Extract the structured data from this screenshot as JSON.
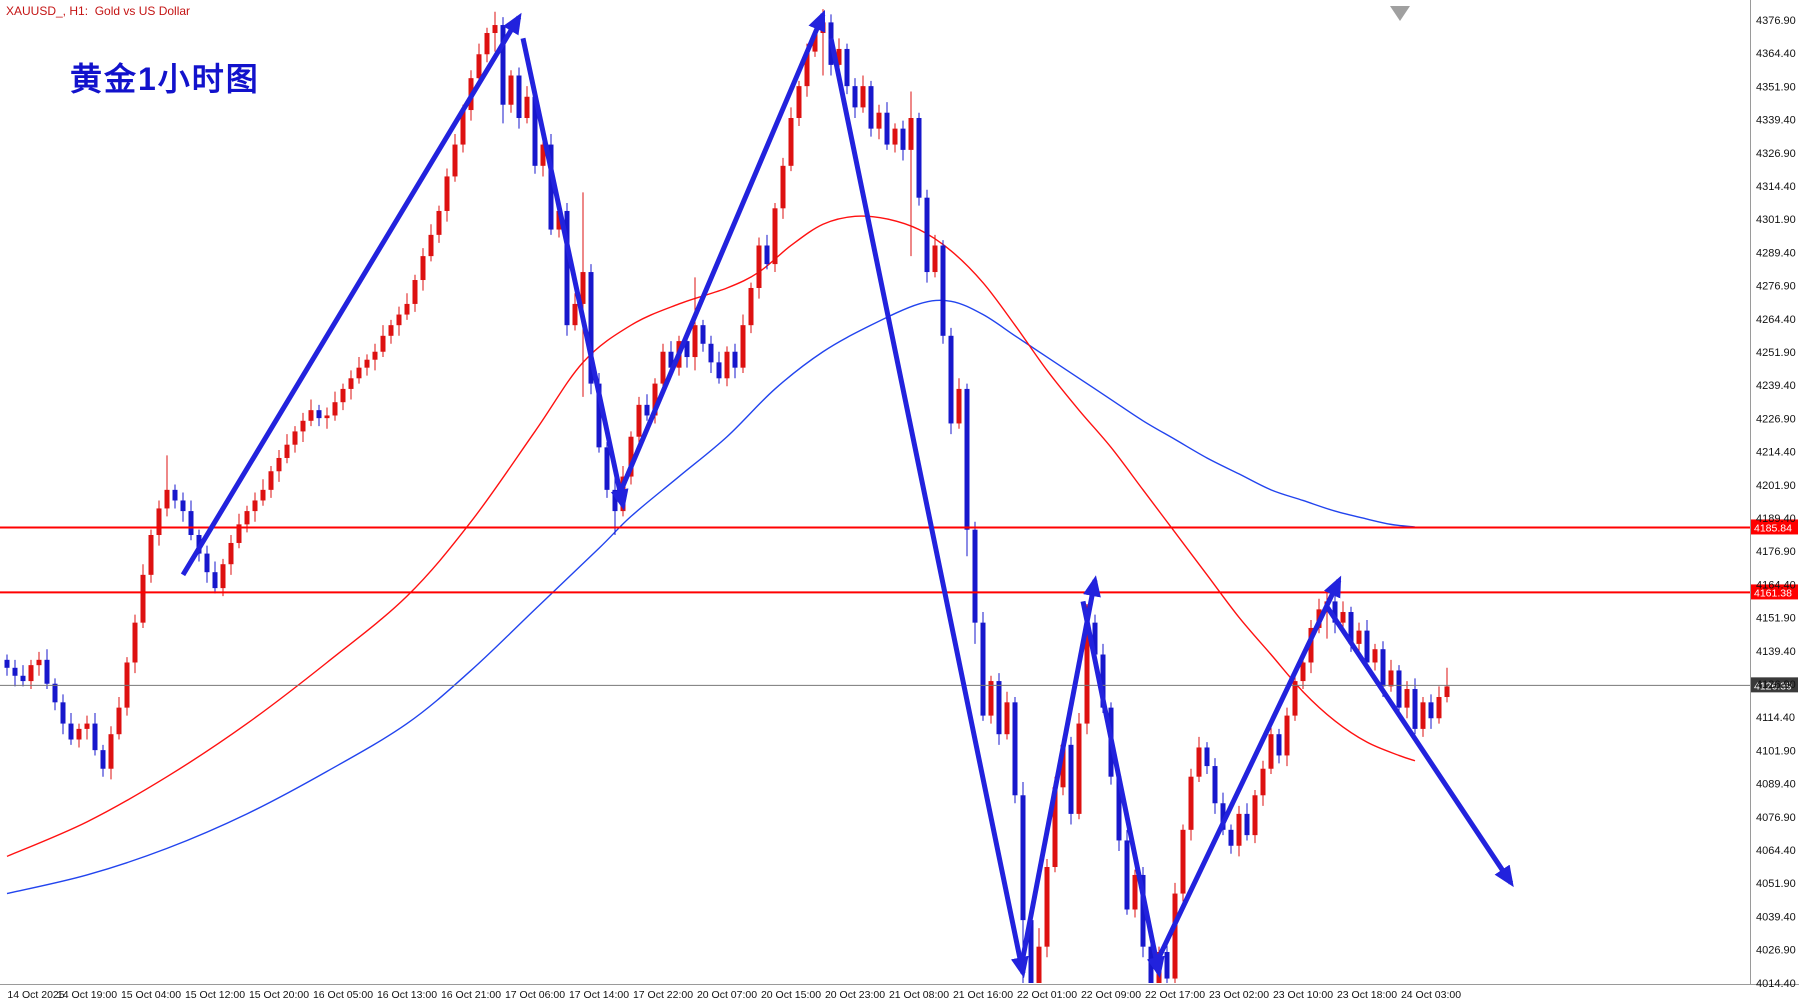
{
  "header": {
    "symbol_title": "XAUUSD_, H1:  Gold vs US Dollar",
    "annotation_title": "黄金1小时图"
  },
  "colors": {
    "background": "#ffffff",
    "bull_candle": "#dd1111",
    "bear_candle": "#1717cc",
    "ma_fast": "#ff1111",
    "ma_slow": "#2244ee",
    "trend_arrow": "#2222dd",
    "hline": "#ff0000",
    "bid_line": "#777777",
    "hline_badge_bg": "#ff0000",
    "bid_badge_bg": "#3a3a3a",
    "badge_text": "#ffffff",
    "axis_text": "#111111",
    "axis_border": "#9a9a9a",
    "shift_marker": "#a0a0a0"
  },
  "chart_data": {
    "type": "candlestick",
    "symbol": "XAUUSD",
    "timeframe": "H1",
    "title": "XAUUSD_, H1:  Gold vs US Dollar",
    "annotation": "黄金1小时图",
    "grid": false,
    "y_axis": {
      "max": 4376.9,
      "min": 4014.4,
      "step": 12.5,
      "labels": [
        "4376.90",
        "4364.40",
        "4351.90",
        "4339.40",
        "4326.90",
        "4314.40",
        "4301.90",
        "4289.40",
        "4276.90",
        "4264.40",
        "4251.90",
        "4239.40",
        "4226.90",
        "4214.40",
        "4201.90",
        "4189.40",
        "4176.90",
        "4164.40",
        "4151.90",
        "4139.40",
        "4126.90",
        "4114.40",
        "4101.90",
        "4089.40",
        "4076.90",
        "4064.40",
        "4051.90",
        "4039.40",
        "4026.90",
        "4014.40"
      ]
    },
    "x_axis": {
      "labels": [
        "14 Oct 2025",
        "14 Oct 19:00",
        "15 Oct 04:00",
        "15 Oct 12:00",
        "15 Oct 20:00",
        "16 Oct 05:00",
        "16 Oct 13:00",
        "16 Oct 21:00",
        "17 Oct 06:00",
        "17 Oct 14:00",
        "17 Oct 22:00",
        "20 Oct 07:00",
        "20 Oct 15:00",
        "20 Oct 23:00",
        "21 Oct 08:00",
        "21 Oct 16:00",
        "22 Oct 01:00",
        "22 Oct 09:00",
        "22 Oct 17:00",
        "23 Oct 02:00",
        "23 Oct 10:00",
        "23 Oct 18:00",
        "24 Oct 03:00"
      ],
      "candles_per_label": 8,
      "first_label_candle_index": 2
    },
    "price_lines": [
      {
        "price": 4185.84,
        "label": "4185.84",
        "role": "horizontal-resistance-line",
        "width": 2
      },
      {
        "price": 4161.38,
        "label": "4161.38",
        "role": "horizontal-support-line",
        "width": 2
      },
      {
        "price": 4126.39,
        "label": "4126.39",
        "role": "bid-price-line",
        "width": 1
      }
    ],
    "first_open": 4136,
    "closes": [
      4133,
      4130,
      4128,
      4134,
      4136,
      4127,
      4120,
      4112,
      4106,
      4110,
      4112,
      4102,
      4095,
      4108,
      4118,
      4135,
      4150,
      4168,
      4183,
      4193,
      4200,
      4196,
      4192,
      4183,
      4176,
      4169,
      4163,
      4172,
      4180,
      4187,
      4192,
      4196,
      4200,
      4207,
      4212,
      4217,
      4222,
      4226,
      4230,
      4227,
      4228,
      4233,
      4238,
      4242,
      4246,
      4249,
      4252,
      4258,
      4262,
      4266,
      4270,
      4279,
      4288,
      4296,
      4305,
      4318,
      4330,
      4343,
      4355,
      4364,
      4372,
      4375,
      4345,
      4356,
      4340,
      4348,
      4322,
      4330,
      4298,
      4305,
      4262,
      4270,
      4282,
      4240,
      4216,
      4200,
      4192,
      4205,
      4220,
      4232,
      4228,
      4240,
      4252,
      4246,
      4256,
      4250,
      4262,
      4255,
      4248,
      4242,
      4252,
      4246,
      4262,
      4276,
      4292,
      4285,
      4306,
      4322,
      4340,
      4352,
      4365,
      4372,
      4376,
      4360,
      4366,
      4352,
      4344,
      4352,
      4336,
      4342,
      4330,
      4336,
      4328,
      4340,
      4310,
      4282,
      4292,
      4258,
      4225,
      4238,
      4185,
      4150,
      4115,
      4128,
      4108,
      4120,
      4085,
      4038,
      4012,
      4028,
      4058,
      4088,
      4104,
      4078,
      4112,
      4150,
      4138,
      4118,
      4092,
      4068,
      4042,
      4055,
      4028,
      4012,
      4026,
      4016,
      4048,
      4072,
      4092,
      4103,
      4096,
      4082,
      4072,
      4066,
      4078,
      4070,
      4085,
      4095,
      4108,
      4100,
      4115,
      4128,
      4135,
      4148,
      4155,
      4158,
      4150,
      4154,
      4142,
      4147,
      4135,
      4140,
      4126,
      4132,
      4118,
      4125,
      4110,
      4120,
      4114,
      4122,
      4126
    ],
    "extremes": {
      "20": [
        4213,
        4190
      ],
      "61": [
        4380,
        4365
      ],
      "62": [
        4378,
        4338
      ],
      "72": [
        4312,
        4235
      ],
      "76": [
        4208,
        4183
      ],
      "86": [
        4280,
        4245
      ],
      "102": [
        4381,
        4356
      ],
      "113": [
        4350,
        4288
      ],
      "120": [
        4240,
        4175
      ],
      "121": [
        4188,
        4142
      ],
      "127": [
        4090,
        4012
      ],
      "128": [
        4042,
        4006
      ],
      "129": [
        4035,
        4005
      ],
      "135": [
        4157,
        4108
      ],
      "143": [
        4032,
        4006
      ],
      "145": [
        4030,
        4004
      ],
      "165": [
        4162,
        4144
      ],
      "180": [
        4133,
        4120
      ]
    },
    "ma_fast_points": [
      [
        0,
        4062
      ],
      [
        10,
        4075
      ],
      [
        20,
        4092
      ],
      [
        30,
        4112
      ],
      [
        40,
        4135
      ],
      [
        50,
        4160
      ],
      [
        58,
        4188
      ],
      [
        66,
        4222
      ],
      [
        72,
        4248
      ],
      [
        78,
        4262
      ],
      [
        84,
        4270
      ],
      [
        90,
        4276
      ],
      [
        94,
        4282
      ],
      [
        98,
        4292
      ],
      [
        102,
        4300
      ],
      [
        106,
        4303
      ],
      [
        110,
        4302
      ],
      [
        114,
        4298
      ],
      [
        118,
        4290
      ],
      [
        122,
        4278
      ],
      [
        126,
        4262
      ],
      [
        130,
        4245
      ],
      [
        134,
        4230
      ],
      [
        138,
        4216
      ],
      [
        142,
        4200
      ],
      [
        146,
        4184
      ],
      [
        150,
        4168
      ],
      [
        154,
        4152
      ],
      [
        158,
        4138
      ],
      [
        162,
        4124
      ],
      [
        166,
        4113
      ],
      [
        170,
        4105
      ],
      [
        174,
        4100
      ],
      [
        176,
        4098
      ]
    ],
    "ma_slow_points": [
      [
        0,
        4048
      ],
      [
        10,
        4055
      ],
      [
        20,
        4065
      ],
      [
        30,
        4078
      ],
      [
        40,
        4094
      ],
      [
        50,
        4112
      ],
      [
        58,
        4132
      ],
      [
        66,
        4155
      ],
      [
        74,
        4178
      ],
      [
        78,
        4190
      ],
      [
        84,
        4205
      ],
      [
        90,
        4220
      ],
      [
        96,
        4238
      ],
      [
        102,
        4252
      ],
      [
        108,
        4262
      ],
      [
        114,
        4270
      ],
      [
        118,
        4271
      ],
      [
        122,
        4266
      ],
      [
        126,
        4258
      ],
      [
        130,
        4250
      ],
      [
        134,
        4242
      ],
      [
        138,
        4234
      ],
      [
        142,
        4226
      ],
      [
        146,
        4219
      ],
      [
        150,
        4212
      ],
      [
        154,
        4206
      ],
      [
        158,
        4200
      ],
      [
        162,
        4196
      ],
      [
        166,
        4192
      ],
      [
        170,
        4189
      ],
      [
        173,
        4187
      ],
      [
        176,
        4186
      ]
    ],
    "trend_arrows": [
      {
        "from": [
          22,
          4168
        ],
        "to": [
          64,
          4378
        ]
      },
      {
        "from": [
          64.5,
          4370
        ],
        "to": [
          77,
          4194
        ]
      },
      {
        "from": [
          76.5,
          4198
        ],
        "to": [
          102,
          4379
        ]
      },
      {
        "from": [
          103,
          4370
        ],
        "to": [
          127,
          4018
        ]
      },
      {
        "from": [
          127,
          4024
        ],
        "to": [
          136,
          4166
        ]
      },
      {
        "from": [
          134.5,
          4158
        ],
        "to": [
          144,
          4018
        ]
      },
      {
        "from": [
          144,
          4024
        ],
        "to": [
          166.5,
          4166
        ]
      },
      {
        "from": [
          165,
          4156
        ],
        "to": [
          188,
          4052
        ]
      }
    ]
  }
}
